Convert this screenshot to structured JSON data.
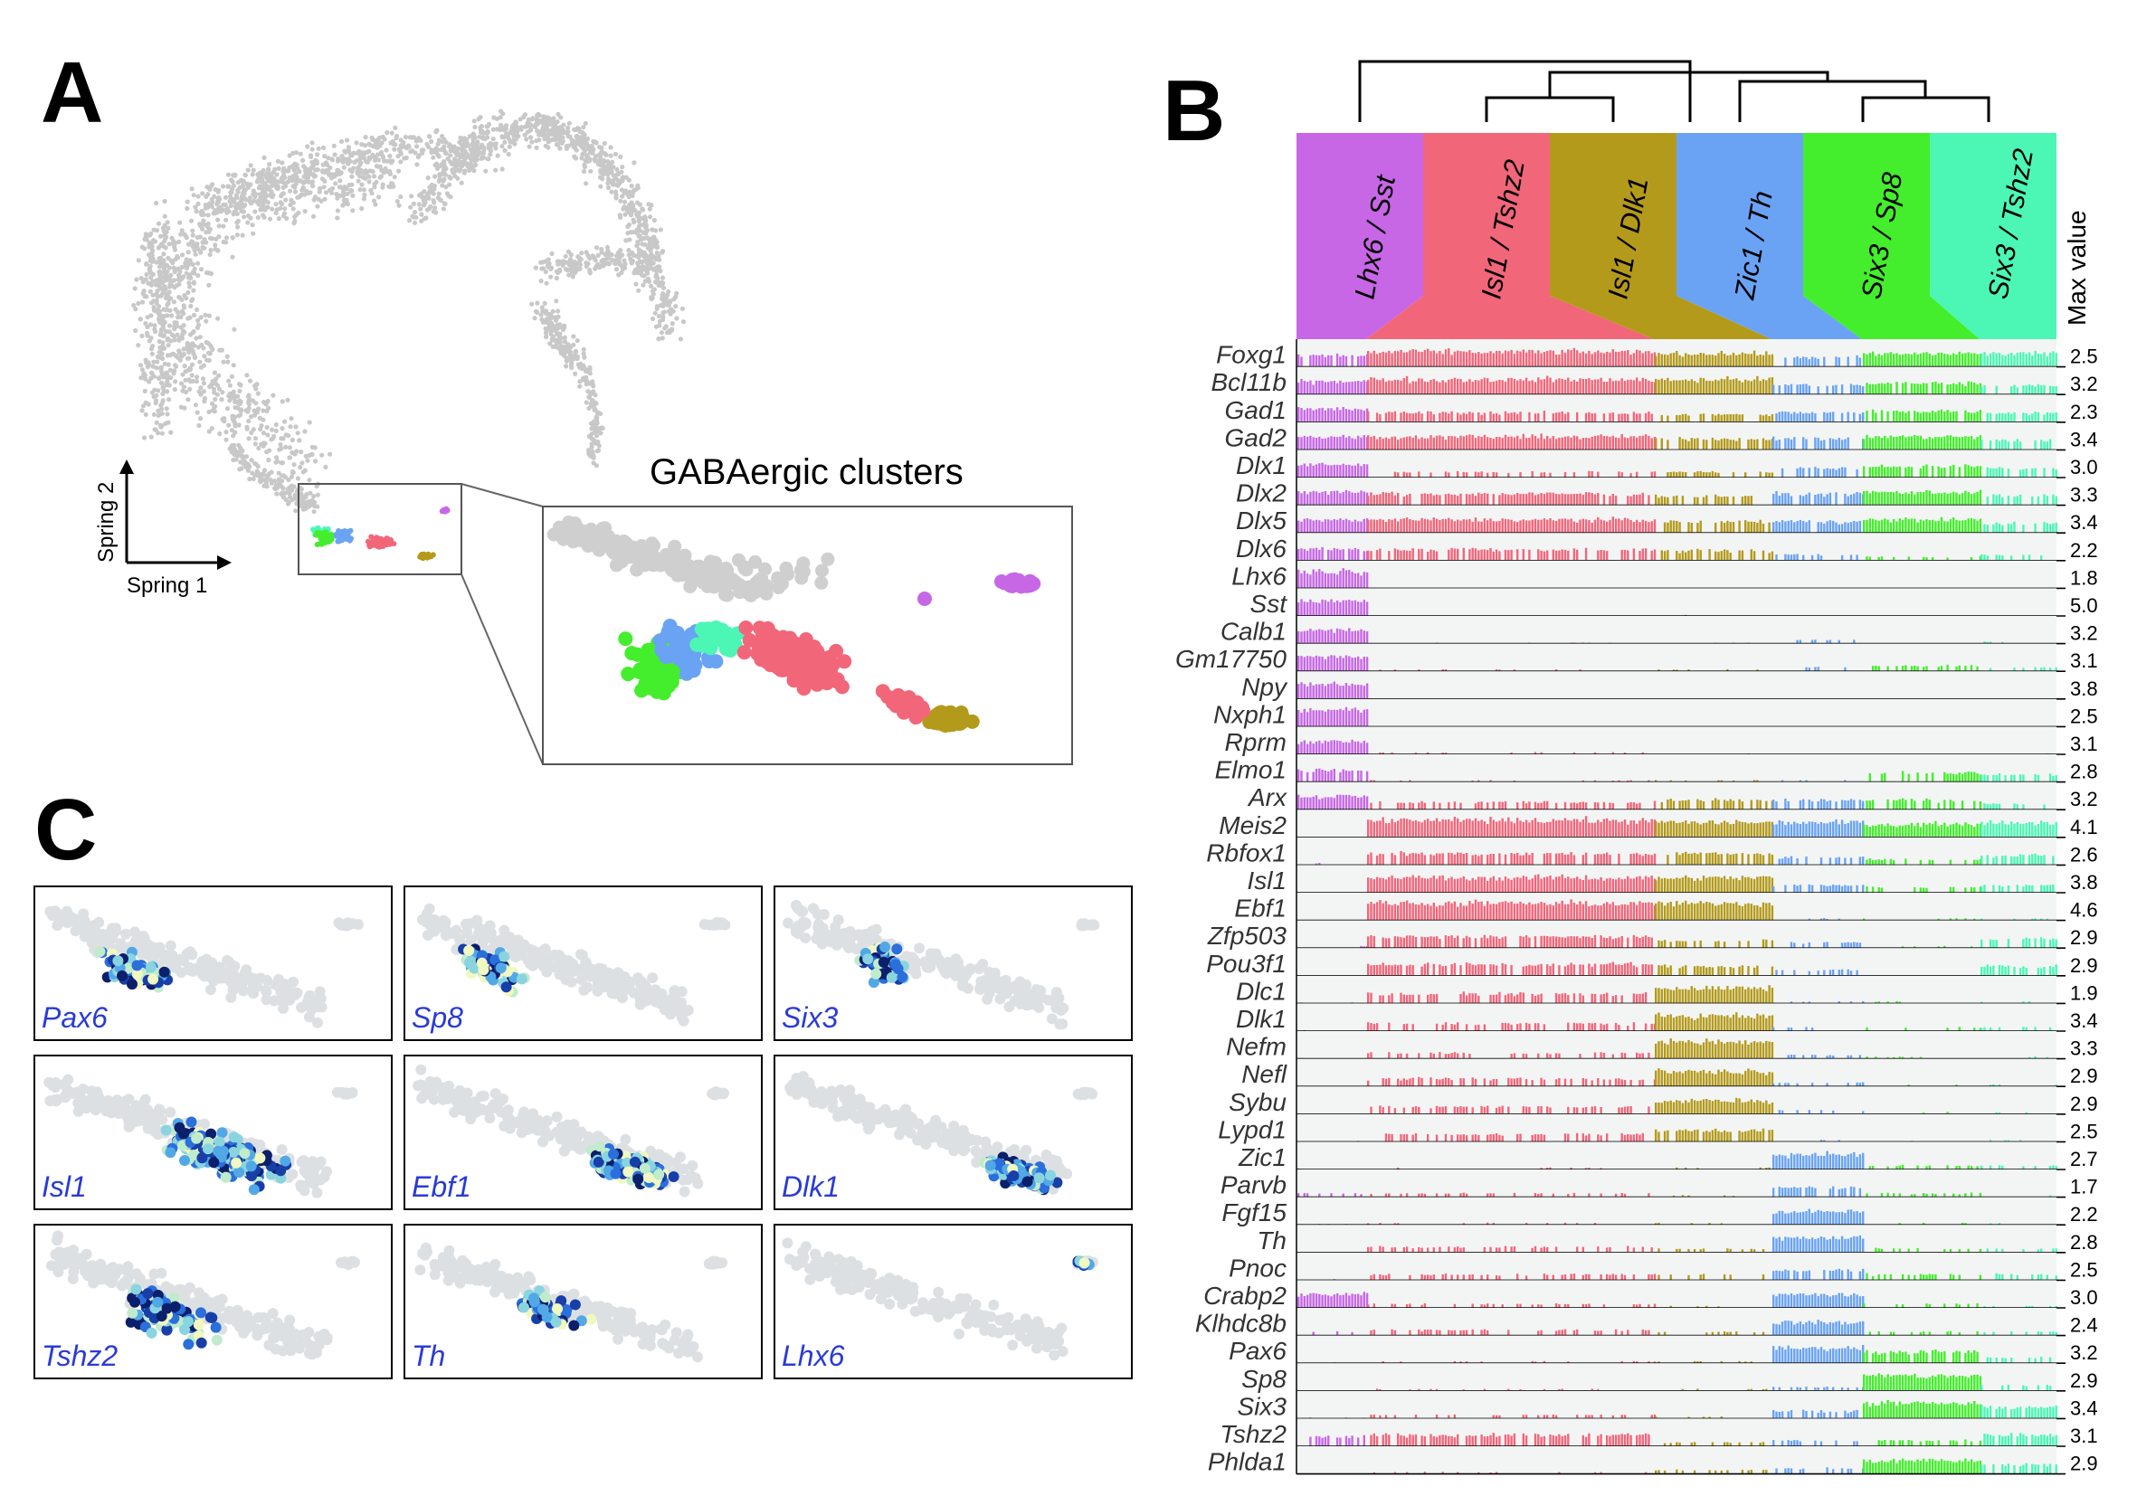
{
  "panels": {
    "a": "A",
    "b": "B",
    "c": "C"
  },
  "panel_a": {
    "inset_title": "GABAergic clusters",
    "axis_x": "Spring 1",
    "axis_y": "Spring 2"
  },
  "panel_b": {
    "max_value_header": "Max value",
    "clusters": [
      {
        "label": "Lhx6 / Sst",
        "color": "#c767e6"
      },
      {
        "label": "Isl1 / Tshz2",
        "color": "#f2667a"
      },
      {
        "label": "Isl1 / Dlk1",
        "color": "#b49a1a"
      },
      {
        "label": "Zic1 / Th",
        "color": "#6aa3f4"
      },
      {
        "label": "Six3 / Sp8",
        "color": "#44ee2c"
      },
      {
        "label": "Six3 / Tshz2",
        "color": "#4cf7b5"
      }
    ],
    "genes": [
      "Foxg1",
      "Bcl11b",
      "Gad1",
      "Gad2",
      "Dlx1",
      "Dlx2",
      "Dlx5",
      "Dlx6",
      "Lhx6",
      "Sst",
      "Calb1",
      "Gm17750",
      "Npy",
      "Nxph1",
      "Rprm",
      "Elmo1",
      "Arx",
      "Meis2",
      "Rbfox1",
      "Isl1",
      "Ebf1",
      "Zfp503",
      "Pou3f1",
      "Dlc1",
      "Dlk1",
      "Nefm",
      "Nefl",
      "Sybu",
      "Lypd1",
      "Zic1",
      "Parvb",
      "Fgf15",
      "Th",
      "Pnoc",
      "Crabp2",
      "Klhdc8b",
      "Pax6",
      "Sp8",
      "Six3",
      "Tshz2",
      "Phlda1"
    ],
    "max_values": [
      "2.5",
      "3.2",
      "2.3",
      "3.4",
      "3.0",
      "3.3",
      "3.4",
      "2.2",
      "1.8",
      "5.0",
      "3.2",
      "3.1",
      "3.8",
      "2.5",
      "3.1",
      "2.8",
      "3.2",
      "4.1",
      "2.6",
      "3.8",
      "4.6",
      "2.9",
      "2.9",
      "1.9",
      "3.4",
      "3.3",
      "2.9",
      "2.9",
      "2.5",
      "2.7",
      "1.7",
      "2.2",
      "2.8",
      "2.5",
      "3.0",
      "2.4",
      "3.2",
      "2.9",
      "3.4",
      "3.1",
      "2.9"
    ],
    "expression_levels": [
      [
        0.6,
        0.8,
        0.7,
        0.5,
        0.7,
        0.7
      ],
      [
        0.7,
        0.8,
        0.8,
        0.5,
        0.6,
        0.5
      ],
      [
        0.7,
        0.5,
        0.4,
        0.5,
        0.6,
        0.5
      ],
      [
        0.7,
        0.7,
        0.6,
        0.6,
        0.7,
        0.5
      ],
      [
        0.7,
        0.3,
        0.3,
        0.5,
        0.6,
        0.5
      ],
      [
        0.7,
        0.6,
        0.5,
        0.6,
        0.7,
        0.5
      ],
      [
        0.7,
        0.7,
        0.6,
        0.6,
        0.7,
        0.5
      ],
      [
        0.6,
        0.6,
        0.5,
        0.3,
        0.2,
        0.3
      ],
      [
        0.9,
        0,
        0,
        0,
        0,
        0
      ],
      [
        0.8,
        0.02,
        0.05,
        0.02,
        0,
        0
      ],
      [
        0.7,
        0.05,
        0.05,
        0.2,
        0.05,
        0.1
      ],
      [
        0.8,
        0.1,
        0.1,
        0.2,
        0.3,
        0.2
      ],
      [
        0.8,
        0,
        0,
        0,
        0,
        0
      ],
      [
        0.9,
        0,
        0.05,
        0,
        0,
        0
      ],
      [
        0.7,
        0.1,
        0.05,
        0.05,
        0.05,
        0.05
      ],
      [
        0.6,
        0.1,
        0.1,
        0.1,
        0.5,
        0.4
      ],
      [
        0.7,
        0.4,
        0.5,
        0.5,
        0.5,
        0.3
      ],
      [
        0.05,
        0.9,
        0.8,
        0.8,
        0.7,
        0.8
      ],
      [
        0.1,
        0.6,
        0.6,
        0.4,
        0.3,
        0.5
      ],
      [
        0.05,
        0.8,
        0.8,
        0.4,
        0.3,
        0.4
      ],
      [
        0,
        0.9,
        0.9,
        0.1,
        0.1,
        0.1
      ],
      [
        0.1,
        0.6,
        0.4,
        0.3,
        0.1,
        0.5
      ],
      [
        0.05,
        0.6,
        0.5,
        0.3,
        0.2,
        0.5
      ],
      [
        0.05,
        0.5,
        0.8,
        0.1,
        0.1,
        0.1
      ],
      [
        0.05,
        0.4,
        0.8,
        0.2,
        0.2,
        0.2
      ],
      [
        0.05,
        0.3,
        0.9,
        0.2,
        0.1,
        0.1
      ],
      [
        0.05,
        0.4,
        0.8,
        0.2,
        0.1,
        0.1
      ],
      [
        0.05,
        0.4,
        0.7,
        0.2,
        0.1,
        0.1
      ],
      [
        0.05,
        0.4,
        0.6,
        0.1,
        0.05,
        0.1
      ],
      [
        0.05,
        0.1,
        0.1,
        0.8,
        0.2,
        0.2
      ],
      [
        0.2,
        0.2,
        0.1,
        0.5,
        0.2,
        0.1
      ],
      [
        0.05,
        0.1,
        0.1,
        0.7,
        0.1,
        0.1
      ],
      [
        0.05,
        0.3,
        0.2,
        0.8,
        0.2,
        0.2
      ],
      [
        0.05,
        0.3,
        0.3,
        0.5,
        0.3,
        0.3
      ],
      [
        0.7,
        0.2,
        0.1,
        0.7,
        0.2,
        0.1
      ],
      [
        0.2,
        0.3,
        0.2,
        0.7,
        0.2,
        0.2
      ],
      [
        0.05,
        0.1,
        0.1,
        0.8,
        0.6,
        0.3
      ],
      [
        0.05,
        0.1,
        0.1,
        0.2,
        0.8,
        0.3
      ],
      [
        0.05,
        0.2,
        0.1,
        0.4,
        0.8,
        0.6
      ],
      [
        0.5,
        0.6,
        0.2,
        0.3,
        0.3,
        0.6
      ],
      [
        0.05,
        0.1,
        0.2,
        0.3,
        0.7,
        0.5
      ]
    ]
  },
  "panel_c": {
    "genes": [
      "Pax6",
      "Sp8",
      "Six3",
      "Isl1",
      "Ebf1",
      "Dlk1",
      "Tshz2",
      "Th",
      "Lhx6"
    ]
  }
}
